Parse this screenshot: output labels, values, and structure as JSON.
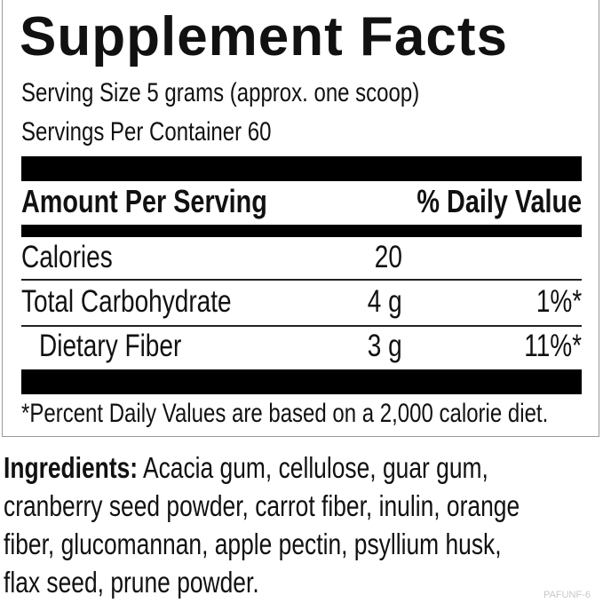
{
  "title": "Supplement Facts",
  "serving_size": "Serving Size 5 grams (approx. one scoop)",
  "servings_per_container": "Servings Per Container 60",
  "table": {
    "header_amount": "Amount Per Serving",
    "header_dv": "% Daily Value",
    "rows": [
      {
        "name": "Calories",
        "amount": "20",
        "dv": ""
      },
      {
        "name": "Total Carbohydrate",
        "amount": "4 g",
        "dv": "1%*"
      },
      {
        "name": "Dietary Fiber",
        "amount": "3 g",
        "dv": "11%*"
      }
    ]
  },
  "footnote": "*Percent Daily Values are based on a 2,000 calorie diet.",
  "ingredients": {
    "label": "Ingredients:",
    "text": " Acacia gum, cellulose, guar gum, cranberry seed powder, carrot fiber, inulin, orange fiber, glucomannan, apple pectin, psyllium husk, flax seed, prune powder."
  },
  "product_code": "PAFUNF-6"
}
